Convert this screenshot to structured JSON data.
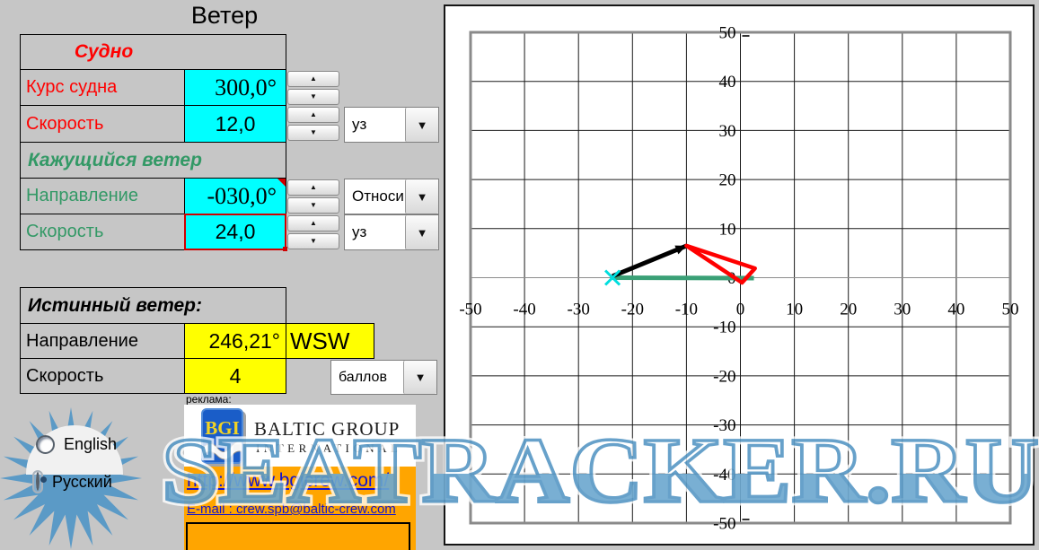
{
  "window": {
    "title": "Ветер"
  },
  "ship": {
    "header": "Судно",
    "rows": [
      {
        "label": "Курс судна",
        "value": "300,0°"
      },
      {
        "label": "Скорость",
        "value": "12,0",
        "unit": "уз"
      }
    ]
  },
  "apparent": {
    "header": "Кажущийся ветер",
    "rows": [
      {
        "label": "Направление",
        "value": "-030,0°",
        "unit": "Относи"
      },
      {
        "label": "Скорость",
        "value": "24,0",
        "unit": "уз"
      }
    ]
  },
  "true_wind": {
    "header": "Истинный ветер:",
    "rows": [
      {
        "label": "Направление",
        "value": "246,21°",
        "compass": "WSW"
      },
      {
        "label": "Скорость",
        "value": "4",
        "unit": "баллов"
      }
    ]
  },
  "language": {
    "options": [
      {
        "label": "English",
        "selected": false
      },
      {
        "label": "Русский",
        "selected": true
      }
    ]
  },
  "ad": {
    "label": "реклама:",
    "logo": "BGI",
    "company_line1": "BALTIC GROUP",
    "company_line2": "INTERNATIONAL",
    "url": "http://www.bgicrew.com/",
    "email": "E-mail : crew.spb@baltic-crew.com"
  },
  "watermark": {
    "text": "SEATRACKER.RU"
  },
  "colors": {
    "input_cyan": "#00ffff",
    "result_yellow": "#ffff00",
    "label_red": "#ff0000",
    "label_green": "#339966",
    "watermark_blue": "#5b9ac6",
    "ad_orange": "#ffa500"
  },
  "chart_data": {
    "type": "scatter",
    "subtype": "wind-vector-diagram",
    "title": "",
    "xlabel": "",
    "ylabel": "",
    "xlim": [
      -50,
      50
    ],
    "ylim": [
      -50,
      50
    ],
    "xticks": [
      -50,
      -40,
      -30,
      -20,
      -10,
      0,
      10,
      20,
      30,
      40,
      50
    ],
    "yticks": [
      50,
      40,
      30,
      20,
      10,
      0,
      -10,
      -20,
      -30,
      -40,
      -50
    ],
    "grid": true,
    "legend": false,
    "series": [
      {
        "name": "apparent-wind-vector",
        "type": "line",
        "color": "#3aa076",
        "width": 5,
        "from": [
          -23.7,
          0
        ],
        "to": [
          2.5,
          -0.1
        ]
      },
      {
        "name": "true-wind-vector",
        "type": "arrow",
        "color": "#000000",
        "width": 5,
        "from": [
          -23.7,
          0.3
        ],
        "to": [
          -10.0,
          6.5
        ]
      },
      {
        "name": "ship-motion-vector",
        "type": "wedge",
        "color": "#ff0000",
        "width": 4.5,
        "points": [
          [
            -10.0,
            6.5
          ],
          [
            2.7,
            1.9
          ],
          [
            0.3,
            -1.0
          ]
        ]
      }
    ],
    "marker": {
      "name": "start-marker",
      "shape": "x",
      "color": "#00dede",
      "at": [
        -23.7,
        0
      ],
      "size": 16
    }
  }
}
